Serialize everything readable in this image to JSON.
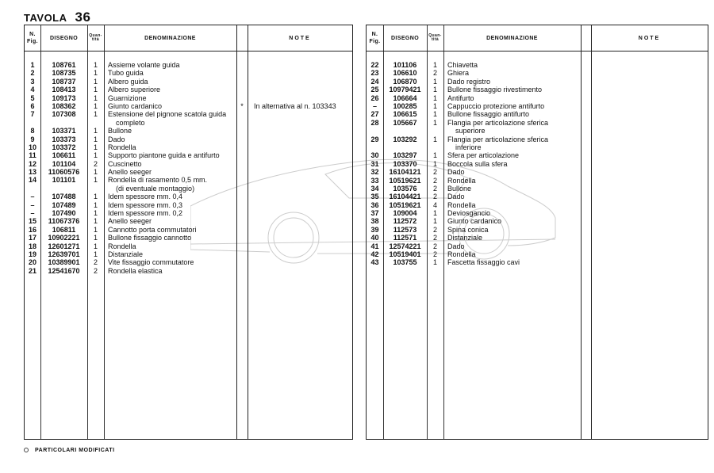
{
  "page": {
    "title_label": "TAVOLA",
    "title_number": "36"
  },
  "headers": {
    "fig": "N. Fig.",
    "disegno": "DISEGNO",
    "quantita": "Quan-tità",
    "denominazione": "DENOMINAZIONE",
    "note": "NOTE"
  },
  "footer": {
    "symbol": "⊕",
    "text": "PARTICOLARI MODIFICATI"
  },
  "left_table": [
    {
      "fig": "1",
      "disegno": "108761",
      "qty": "1",
      "desc": [
        "Assieme volante guida"
      ]
    },
    {
      "fig": "2",
      "disegno": "108735",
      "qty": "1",
      "desc": [
        "Tubo guida"
      ]
    },
    {
      "fig": "3",
      "disegno": "108737",
      "qty": "1",
      "desc": [
        "Albero guida"
      ]
    },
    {
      "fig": "4",
      "disegno": "108413",
      "qty": "1",
      "desc": [
        "Albero superiore"
      ]
    },
    {
      "fig": "5",
      "disegno": "109173",
      "qty": "1",
      "desc": [
        "Guarnizione"
      ]
    },
    {
      "fig": "6",
      "disegno": "108362",
      "qty": "1",
      "desc": [
        "Giunto cardanico"
      ],
      "mark": "*",
      "note": "In alternativa al n. 103343"
    },
    {
      "fig": "7",
      "disegno": "107308",
      "qty": "1",
      "desc": [
        "Estensione del pignone scatola guida",
        "completo"
      ]
    },
    {
      "fig": "8",
      "disegno": "103371",
      "qty": "1",
      "desc": [
        "Bullone"
      ]
    },
    {
      "fig": "9",
      "disegno": "103373",
      "qty": "1",
      "desc": [
        "Dado"
      ]
    },
    {
      "fig": "10",
      "disegno": "103372",
      "qty": "1",
      "desc": [
        "Rondella"
      ]
    },
    {
      "fig": "11",
      "disegno": "106611",
      "qty": "1",
      "desc": [
        "Supporto piantone guida e antifurto"
      ]
    },
    {
      "fig": "12",
      "disegno": "101104",
      "qty": "2",
      "desc": [
        "Cuscinetto"
      ]
    },
    {
      "fig": "13",
      "disegno": "11060576",
      "qty": "1",
      "desc": [
        "Anello seeger"
      ]
    },
    {
      "fig": "14",
      "disegno": "101101",
      "qty": "1",
      "desc": [
        "Rondella di rasamento 0,5 mm.",
        "(di eventuale montaggio)"
      ]
    },
    {
      "fig": "–",
      "disegno": "107488",
      "qty": "1",
      "desc": [
        "Idem spessore mm. 0,4"
      ]
    },
    {
      "fig": "–",
      "disegno": "107489",
      "qty": "1",
      "desc": [
        "Idem spessore mm. 0,3"
      ]
    },
    {
      "fig": "–",
      "disegno": "107490",
      "qty": "1",
      "desc": [
        "Idem spessore mm. 0,2"
      ]
    },
    {
      "fig": "15",
      "disegno": "11067376",
      "qty": "1",
      "desc": [
        "Anello seeger"
      ]
    },
    {
      "fig": "16",
      "disegno": "106811",
      "qty": "1",
      "desc": [
        "Cannotto porta commutatori"
      ]
    },
    {
      "fig": "17",
      "disegno": "10902221",
      "qty": "1",
      "desc": [
        "Bullone fissaggio cannotto"
      ]
    },
    {
      "fig": "18",
      "disegno": "12601271",
      "qty": "1",
      "desc": [
        "Rondella"
      ]
    },
    {
      "fig": "19",
      "disegno": "12639701",
      "qty": "1",
      "desc": [
        "Distanziale"
      ]
    },
    {
      "fig": "20",
      "disegno": "10389901",
      "qty": "2",
      "desc": [
        "Vite fissaggio commutatore"
      ]
    },
    {
      "fig": "21",
      "disegno": "12541670",
      "qty": "2",
      "desc": [
        "Rondella elastica"
      ]
    }
  ],
  "right_table": [
    {
      "fig": "22",
      "disegno": "101106",
      "qty": "1",
      "desc": [
        "Chiavetta"
      ]
    },
    {
      "fig": "23",
      "disegno": "106610",
      "qty": "2",
      "desc": [
        "Ghiera"
      ]
    },
    {
      "fig": "24",
      "disegno": "106870",
      "qty": "1",
      "desc": [
        "Dado registro"
      ]
    },
    {
      "fig": "25",
      "disegno": "10979421",
      "qty": "1",
      "desc": [
        "Bullone fissaggio rivestimento"
      ]
    },
    {
      "fig": "26",
      "disegno": "106664",
      "qty": "1",
      "desc": [
        "Antifurto"
      ]
    },
    {
      "fig": "–",
      "disegno": "100285",
      "qty": "1",
      "desc": [
        "Cappuccio protezione antifurto"
      ]
    },
    {
      "fig": "27",
      "disegno": "106615",
      "qty": "1",
      "desc": [
        "Bullone fissaggio antifurto"
      ]
    },
    {
      "fig": "28",
      "disegno": "105667",
      "qty": "1",
      "desc": [
        "Flangia per articolazione sferica",
        "superiore"
      ]
    },
    {
      "fig": "29",
      "disegno": "103292",
      "qty": "1",
      "desc": [
        "Flangia per articolazione sferica",
        "inferiore"
      ]
    },
    {
      "fig": "30",
      "disegno": "103297",
      "qty": "1",
      "desc": [
        "Sfera per articolazione"
      ]
    },
    {
      "fig": "31",
      "disegno": "103370",
      "qty": "1",
      "desc": [
        "Boccola sulla sfera"
      ]
    },
    {
      "fig": "32",
      "disegno": "16104121",
      "qty": "2",
      "desc": [
        "Dado"
      ]
    },
    {
      "fig": "33",
      "disegno": "10519621",
      "qty": "2",
      "desc": [
        "Rondella"
      ]
    },
    {
      "fig": "34",
      "disegno": "103576",
      "qty": "2",
      "desc": [
        "Bullone"
      ]
    },
    {
      "fig": "35",
      "disegno": "16104421",
      "qty": "2",
      "desc": [
        "Dado"
      ]
    },
    {
      "fig": "36",
      "disegno": "10519621",
      "qty": "4",
      "desc": [
        "Rondella"
      ]
    },
    {
      "fig": "37",
      "disegno": "109004",
      "qty": "1",
      "desc": [
        "Deviosgancio"
      ]
    },
    {
      "fig": "38",
      "disegno": "112572",
      "qty": "1",
      "desc": [
        "Giunto cardanico"
      ]
    },
    {
      "fig": "39",
      "disegno": "112573",
      "qty": "2",
      "desc": [
        "Spina conica"
      ]
    },
    {
      "fig": "40",
      "disegno": "112571",
      "qty": "2",
      "desc": [
        "Distanziale"
      ]
    },
    {
      "fig": "41",
      "disegno": "12574221",
      "qty": "2",
      "desc": [
        "Dado"
      ]
    },
    {
      "fig": "42",
      "disegno": "10519401",
      "qty": "2",
      "desc": [
        "Rondella"
      ]
    },
    {
      "fig": "43",
      "disegno": "103755",
      "qty": "1",
      "desc": [
        "Fascetta fissaggio cavi"
      ]
    }
  ]
}
